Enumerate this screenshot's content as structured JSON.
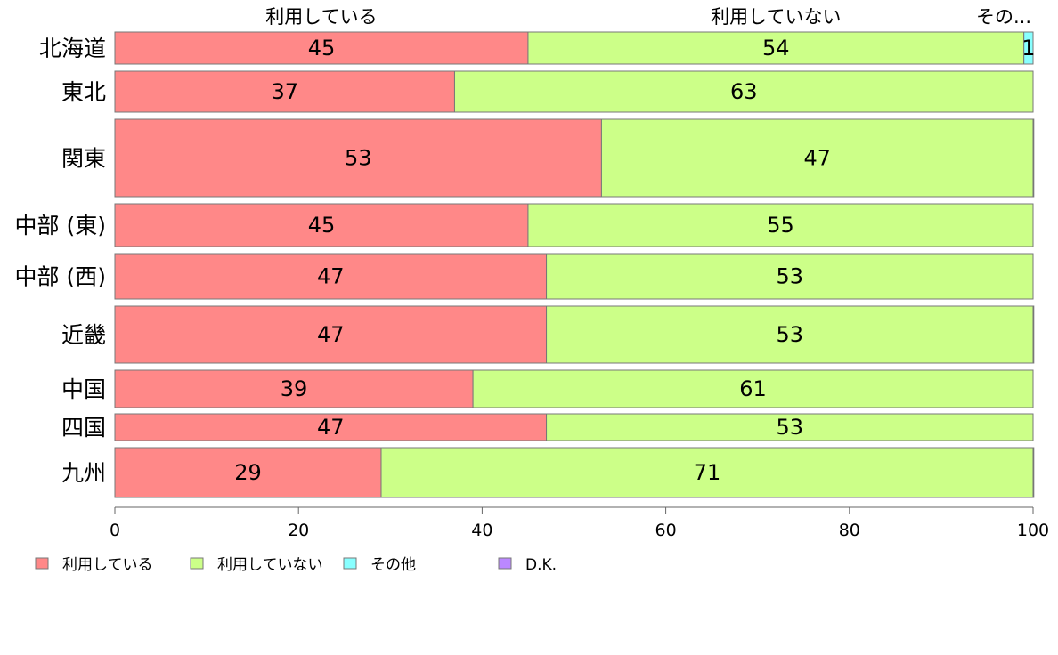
{
  "chart_data": {
    "type": "bar",
    "orientation": "horizontal",
    "stacked": true,
    "categories": [
      "北海道",
      "東北",
      "関東",
      "中部 (東)",
      "中部 (西)",
      "近畿",
      "中国",
      "四国",
      "九州"
    ],
    "series": [
      {
        "name": "利用している",
        "color": "#ff8888",
        "values": [
          45,
          37,
          53,
          45,
          47,
          47,
          39,
          47,
          29
        ]
      },
      {
        "name": "利用していない",
        "color": "#ccff88",
        "values": [
          54,
          63,
          47,
          55,
          53,
          53,
          61,
          53,
          71
        ]
      },
      {
        "name": "その他",
        "color": "#88ffff",
        "values": [
          1,
          0,
          0,
          0,
          0,
          0,
          0,
          0,
          0
        ]
      },
      {
        "name": "D.K.",
        "color": "#bb88ff",
        "values": [
          0,
          0,
          0.3,
          0,
          0,
          0.2,
          0,
          0,
          0.5
        ]
      }
    ],
    "value_labels": [
      [
        "45",
        "54",
        "1"
      ],
      [
        "37",
        "63"
      ],
      [
        "53",
        "47"
      ],
      [
        "45",
        "55"
      ],
      [
        "47",
        "53"
      ],
      [
        "47",
        "53"
      ],
      [
        "39",
        "61"
      ],
      [
        "47",
        "53"
      ],
      [
        "29",
        "71"
      ]
    ],
    "top_labels": [
      "利用している",
      "利用していない",
      "その..."
    ],
    "xlim": [
      0,
      100
    ],
    "xticks": [
      0,
      20,
      40,
      60,
      80,
      100
    ],
    "legend_position": "bottom",
    "grid": false
  }
}
